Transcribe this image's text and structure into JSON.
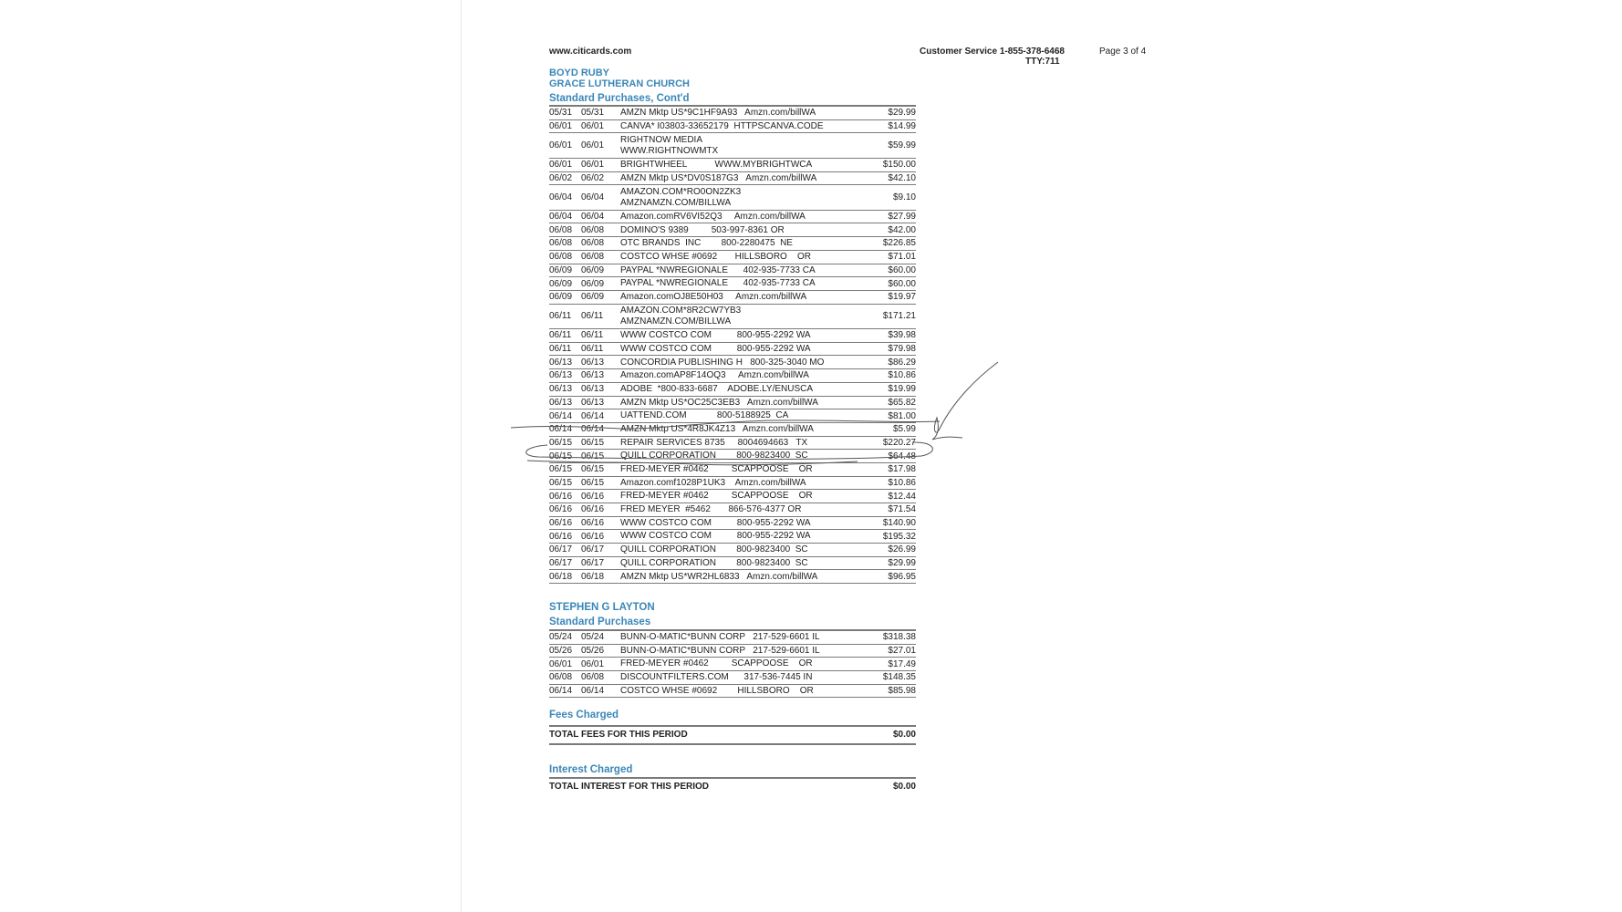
{
  "header": {
    "website": "www.citicards.com",
    "customer_service": "Customer Service 1-855-378-6468",
    "tty": "TTY:711",
    "page": "Page 3 of 4"
  },
  "section1": {
    "name": "BOYD RUBY",
    "org": "GRACE LUTHERAN CHURCH",
    "title": "Standard Purchases, Cont'd",
    "rows": [
      {
        "trans": "05/31",
        "post": "05/31",
        "desc": "AMZN Mktp US*9C1HF9A93   Amzn.com/billWA",
        "amount": "$29.99"
      },
      {
        "trans": "06/01",
        "post": "06/01",
        "desc": "CANVA* I03803-33652179  HTTPSCANVA.CODE",
        "amount": "$14.99"
      },
      {
        "trans": "06/01",
        "post": "06/01",
        "desc": "RIGHTNOW MEDIA\nWWW.RIGHTNOWMTX",
        "amount": "$59.99"
      },
      {
        "trans": "06/01",
        "post": "06/01",
        "desc": "BRIGHTWHEEL           WWW.MYBRIGHTWCA",
        "amount": "$150.00"
      },
      {
        "trans": "06/02",
        "post": "06/02",
        "desc": "AMZN Mktp US*DV0S187G3   Amzn.com/billWA",
        "amount": "$42.10"
      },
      {
        "trans": "06/04",
        "post": "06/04",
        "desc": "AMAZON.COM*RO0ON2ZK3\nAMZNAMZN.COM/BILLWA",
        "amount": "$9.10"
      },
      {
        "trans": "06/04",
        "post": "06/04",
        "desc": "Amazon.comRV6VI52Q3     Amzn.com/billWA",
        "amount": "$27.99"
      },
      {
        "trans": "06/08",
        "post": "06/08",
        "desc": "DOMINO'S 9389         503-997-8361 OR",
        "amount": "$42.00"
      },
      {
        "trans": "06/08",
        "post": "06/08",
        "desc": "OTC BRANDS  INC        800-2280475  NE",
        "amount": "$226.85"
      },
      {
        "trans": "06/08",
        "post": "06/08",
        "desc": "COSTCO WHSE #0692       HILLSBORO    OR",
        "amount": "$71.01"
      },
      {
        "trans": "06/09",
        "post": "06/09",
        "desc": "PAYPAL *NWREGIONALE      402-935-7733 CA",
        "amount": "$60.00"
      },
      {
        "trans": "06/09",
        "post": "06/09",
        "desc": "PAYPAL *NWREGIONALE      402-935-7733 CA",
        "amount": "$60.00"
      },
      {
        "trans": "06/09",
        "post": "06/09",
        "desc": "Amazon.comOJ8E50H03     Amzn.com/billWA",
        "amount": "$19.97"
      },
      {
        "trans": "06/11",
        "post": "06/11",
        "desc": "AMAZON.COM*8R2CW7YB3\nAMZNAMZN.COM/BILLWA",
        "amount": "$171.21"
      },
      {
        "trans": "06/11",
        "post": "06/11",
        "desc": "WWW COSTCO COM          800-955-2292 WA",
        "amount": "$39.98"
      },
      {
        "trans": "06/11",
        "post": "06/11",
        "desc": "WWW COSTCO COM          800-955-2292 WA",
        "amount": "$79.98"
      },
      {
        "trans": "06/13",
        "post": "06/13",
        "desc": "CONCORDIA PUBLISHING H   800-325-3040 MO",
        "amount": "$86.29"
      },
      {
        "trans": "06/13",
        "post": "06/13",
        "desc": "Amazon.comAP8F14OQ3     Amzn.com/billWA",
        "amount": "$10.86"
      },
      {
        "trans": "06/13",
        "post": "06/13",
        "desc": "ADOBE  *800-833-6687    ADOBE.LY/ENUSCA",
        "amount": "$19.99"
      },
      {
        "trans": "06/13",
        "post": "06/13",
        "desc": "AMZN Mktp US*OC25C3EB3   Amzn.com/billWA",
        "amount": "$65.82"
      },
      {
        "trans": "06/14",
        "post": "06/14",
        "desc": "UATTEND.COM            800-5188925  CA",
        "amount": "$81.00"
      },
      {
        "trans": "06/14",
        "post": "06/14",
        "desc": "AMZN Mktp US*4R8JK4Z13   Amzn.com/billWA",
        "amount": "$5.99"
      },
      {
        "trans": "06/15",
        "post": "06/15",
        "desc": "REPAIR SERVICES 8735     8004694663   TX",
        "amount": "$220.27"
      },
      {
        "trans": "06/15",
        "post": "06/15",
        "desc": "QUILL CORPORATION        800-9823400  SC",
        "amount": "$64.48"
      },
      {
        "trans": "06/15",
        "post": "06/15",
        "desc": "FRED-MEYER #0462         SCAPPOOSE    OR",
        "amount": "$17.98"
      },
      {
        "trans": "06/15",
        "post": "06/15",
        "desc": "Amazon.comf1028P1UK3    Amzn.com/billWA",
        "amount": "$10.86"
      },
      {
        "trans": "06/16",
        "post": "06/16",
        "desc": "FRED-MEYER #0462         SCAPPOOSE    OR",
        "amount": "$12.44"
      },
      {
        "trans": "06/16",
        "post": "06/16",
        "desc": "FRED MEYER  #5462       866-576-4377 OR",
        "amount": "$71.54"
      },
      {
        "trans": "06/16",
        "post": "06/16",
        "desc": "WWW COSTCO COM          800-955-2292 WA",
        "amount": "$140.90"
      },
      {
        "trans": "06/16",
        "post": "06/16",
        "desc": "WWW COSTCO COM          800-955-2292 WA",
        "amount": "$195.32"
      },
      {
        "trans": "06/17",
        "post": "06/17",
        "desc": "QUILL CORPORATION        800-9823400  SC",
        "amount": "$26.99"
      },
      {
        "trans": "06/17",
        "post": "06/17",
        "desc": "QUILL CORPORATION        800-9823400  SC",
        "amount": "$29.99"
      },
      {
        "trans": "06/18",
        "post": "06/18",
        "desc": "AMZN Mktp US*WR2HL6833   Amzn.com/billWA",
        "amount": "$96.95"
      }
    ]
  },
  "section2": {
    "name": "STEPHEN G LAYTON",
    "title": "Standard Purchases",
    "rows": [
      {
        "trans": "05/24",
        "post": "05/24",
        "desc": "BUNN-O-MATIC*BUNN CORP   217-529-6601 IL",
        "amount": "$318.38"
      },
      {
        "trans": "05/26",
        "post": "05/26",
        "desc": "BUNN-O-MATIC*BUNN CORP   217-529-6601 IL",
        "amount": "$27.01"
      },
      {
        "trans": "06/01",
        "post": "06/01",
        "desc": "FRED-MEYER #0462         SCAPPOOSE    OR",
        "amount": "$17.49"
      },
      {
        "trans": "06/08",
        "post": "06/08",
        "desc": "DISCOUNTFILTERS.COM      317-536-7445 IN",
        "amount": "$148.35"
      },
      {
        "trans": "06/14",
        "post": "06/14",
        "desc": "COSTCO WHSE #0692        HILLSBORO    OR",
        "amount": "$85.98"
      }
    ]
  },
  "fees": {
    "title": "Fees Charged",
    "label": "TOTAL FEES FOR THIS PERIOD",
    "amount": "$0.00"
  },
  "interest": {
    "title": "Interest Charged",
    "label": "TOTAL INTEREST FOR THIS PERIOD",
    "amount": "$0.00"
  },
  "colors": {
    "heading": "#3a87b8",
    "ink": "#555555"
  }
}
